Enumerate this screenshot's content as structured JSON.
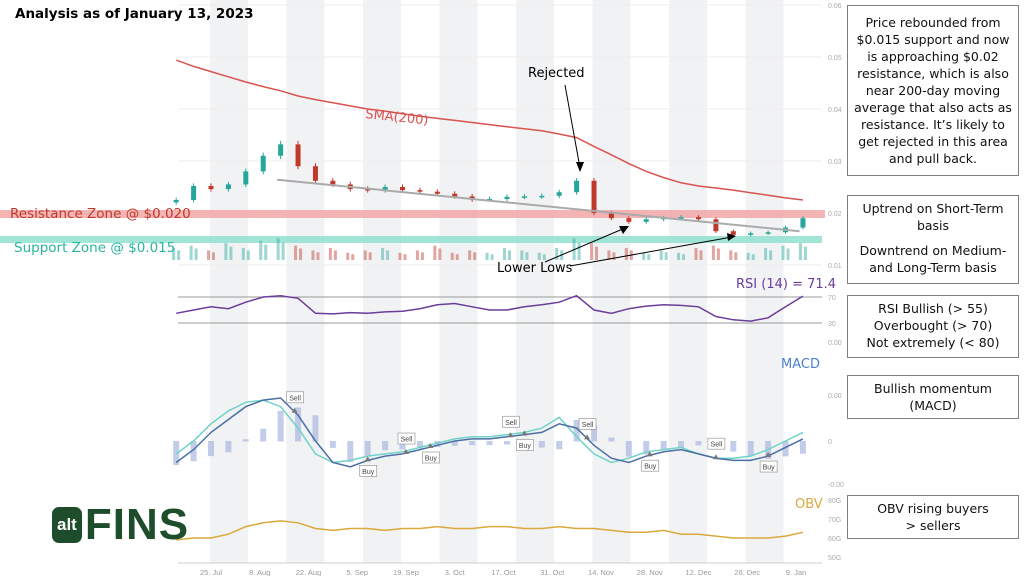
{
  "title": "Analysis as of January 13, 2023",
  "annotations": {
    "rejected": "Rejected",
    "lower_lows": "Lower Lows",
    "sma": "SMA(200)",
    "resistance": "Resistance Zone @ $0.020",
    "support": "Support Zone @ $0.015",
    "rsi": "RSI (14) = 71.4",
    "macd": "MACD",
    "obv": "OBV"
  },
  "notes": [
    [
      "Price rebounded from $0.015 support and now is approaching $0.02 resistance, which is also near 200-day moving average that also acts as resistance.  It’s likely to get rejected in this area and pull back."
    ],
    [
      "Uptrend on Short-Term basis",
      "Downtrend on Medium- and Long-Term basis"
    ],
    [
      "RSI Bullish (> 55)",
      "Overbought (> 70)",
      "Not extremely (< 80)"
    ],
    [
      "Bullish momentum (MACD)"
    ],
    [
      "OBV rising buyers > sellers"
    ]
  ],
  "logo": {
    "alt": "alt",
    "fins": "FINS"
  },
  "colors": {
    "up": "#26a69a",
    "down": "#c0392b",
    "sma": "#d9534f",
    "resistance": "#f2a7a7",
    "support": "#8fe0cf",
    "rsi": "#6a3d9a",
    "macd": "#4a6fa5",
    "signal": "#6fd3c8",
    "hist": "#a9b8e0",
    "obv": "#d9a93a",
    "trend": "#aaaaaa",
    "brand": "#1e4d2b"
  },
  "chart_data": {
    "type": "line",
    "x_ticks": [
      "25. Jul",
      "8. Aug",
      "22. Aug",
      "5. Sep",
      "19. Sep",
      "3. Oct",
      "17. Oct",
      "31. Oct",
      "14. Nov",
      "28. Nov",
      "12. Dec",
      "26. Dec",
      "9. Jan"
    ],
    "x_tick_dates": [
      "2022-07-25",
      "2022-08-08",
      "2022-08-22",
      "2022-09-05",
      "2022-09-19",
      "2022-10-03",
      "2022-10-17",
      "2022-10-31",
      "2022-11-14",
      "2022-11-28",
      "2022-12-12",
      "2022-12-26",
      "2023-01-09"
    ],
    "dates": [
      "2022-07-15",
      "2022-07-20",
      "2022-07-25",
      "2022-07-30",
      "2022-08-04",
      "2022-08-09",
      "2022-08-14",
      "2022-08-19",
      "2022-08-24",
      "2022-08-29",
      "2022-09-03",
      "2022-09-08",
      "2022-09-13",
      "2022-09-18",
      "2022-09-23",
      "2022-09-28",
      "2022-10-03",
      "2022-10-08",
      "2022-10-13",
      "2022-10-18",
      "2022-10-23",
      "2022-10-28",
      "2022-11-02",
      "2022-11-07",
      "2022-11-12",
      "2022-11-17",
      "2022-11-22",
      "2022-11-27",
      "2022-12-02",
      "2022-12-07",
      "2022-12-12",
      "2022-12-17",
      "2022-12-22",
      "2022-12-27",
      "2023-01-01",
      "2023-01-06",
      "2023-01-11"
    ],
    "price": {
      "ylim": [
        0.01,
        0.06
      ],
      "y_ticks": [
        "0.06",
        "0.05",
        "0.04",
        "0.03",
        "0.02",
        "0.01"
      ],
      "close": [
        0.0225,
        0.0252,
        0.0246,
        0.0255,
        0.028,
        0.031,
        0.0332,
        0.029,
        0.0262,
        0.0255,
        0.0246,
        0.0244,
        0.025,
        0.0244,
        0.0241,
        0.0237,
        0.0232,
        0.0226,
        0.0227,
        0.0231,
        0.0232,
        0.0233,
        0.024,
        0.0262,
        0.02,
        0.019,
        0.0183,
        0.0188,
        0.0191,
        0.0192,
        0.0188,
        0.0165,
        0.0158,
        0.0161,
        0.0163,
        0.0172,
        0.019
      ],
      "sma200": [
        0.0494,
        0.0482,
        0.0472,
        0.0462,
        0.0452,
        0.0443,
        0.0435,
        0.0425,
        0.0418,
        0.0412,
        0.0406,
        0.04,
        0.0396,
        0.0391,
        0.0386,
        0.0382,
        0.0378,
        0.0374,
        0.037,
        0.0366,
        0.0362,
        0.0358,
        0.0352,
        0.0345,
        0.0328,
        0.0312,
        0.0295,
        0.028,
        0.0268,
        0.0258,
        0.0252,
        0.0248,
        0.0244,
        0.0239,
        0.0234,
        0.0229,
        0.0225
      ],
      "volume_relative": [
        0.5,
        0.6,
        0.4,
        0.7,
        0.5,
        0.8,
        0.9,
        0.6,
        0.4,
        0.5,
        0.3,
        0.4,
        0.5,
        0.3,
        0.4,
        0.6,
        0.3,
        0.4,
        0.3,
        0.5,
        0.4,
        0.3,
        0.5,
        0.9,
        0.7,
        0.4,
        0.5,
        0.3,
        0.4,
        0.3,
        0.5,
        0.6,
        0.4,
        0.3,
        0.5,
        0.6,
        0.7
      ],
      "resistance": 0.02,
      "support": 0.015,
      "trendline": [
        [
          "2022-08-13",
          0.0264
        ],
        [
          "2023-01-10",
          0.0165
        ]
      ]
    },
    "rsi": {
      "y_ticks": [
        "70",
        "30"
      ],
      "values": [
        45,
        50,
        55,
        52,
        62,
        70,
        72,
        68,
        45,
        44,
        46,
        45,
        47,
        48,
        52,
        58,
        60,
        55,
        50,
        50,
        55,
        58,
        62,
        72,
        50,
        45,
        52,
        56,
        58,
        57,
        55,
        40,
        35,
        33,
        38,
        55,
        71.4
      ]
    },
    "macd": {
      "y_ticks": [
        "0.00",
        "0",
        "-0.00"
      ],
      "macd": [
        -0.0005,
        -0.0002,
        0.0002,
        0.0005,
        0.0008,
        0.00095,
        0.001,
        0.0006,
        0,
        -0.0005,
        -0.0006,
        -0.00045,
        -0.00035,
        -0.0003,
        -0.0002,
        -0.0001,
        0,
        5e-05,
        5e-05,
        0.0001,
        0.00015,
        0.0002,
        0.0004,
        0.0003,
        -0.0001,
        -0.0004,
        -0.0005,
        -0.00035,
        -0.00025,
        -0.0002,
        -0.0003,
        -0.0004,
        -0.00045,
        -0.00045,
        -0.00035,
        -0.00015,
        5e-05
      ],
      "signal": [
        -0.0003,
        0,
        0.0004,
        0.0007,
        0.0009,
        0.00095,
        0.0008,
        0.0003,
        -0.0003,
        -0.0005,
        -0.00045,
        -0.00035,
        -0.0003,
        -0.00025,
        -0.00015,
        -5e-05,
        5e-05,
        0.0001,
        0.0001,
        0.00015,
        0.0002,
        0.0003,
        0.00055,
        0.0001,
        -0.0003,
        -0.0005,
        -0.0004,
        -0.00025,
        -0.0002,
        -0.00015,
        -0.0003,
        -0.0004,
        -0.0004,
        -0.00035,
        -0.0002,
        0,
        0.0002
      ],
      "signals": [
        {
          "date": "2022-08-18",
          "label": "Sell"
        },
        {
          "date": "2022-09-08",
          "label": "Buy"
        },
        {
          "date": "2022-09-19",
          "label": "Sell"
        },
        {
          "date": "2022-09-26",
          "label": "Buy"
        },
        {
          "date": "2022-10-19",
          "label": "Sell"
        },
        {
          "date": "2022-10-23",
          "label": "Buy"
        },
        {
          "date": "2022-11-10",
          "label": "Sell"
        },
        {
          "date": "2022-11-28",
          "label": "Buy"
        },
        {
          "date": "2022-12-17",
          "label": "Sell"
        },
        {
          "date": "2023-01-01",
          "label": "Buy"
        }
      ]
    },
    "obv": {
      "y_ticks": [
        "80G",
        "70G",
        "60G",
        "50G"
      ],
      "values": [
        59,
        60,
        60,
        62,
        66,
        68,
        69,
        68,
        65,
        64,
        65,
        65,
        64,
        65,
        65,
        66,
        65,
        65,
        66,
        66,
        65,
        65,
        66,
        65,
        65,
        64,
        63,
        63,
        64,
        62,
        62,
        61,
        60,
        60,
        60,
        61,
        63
      ]
    }
  }
}
